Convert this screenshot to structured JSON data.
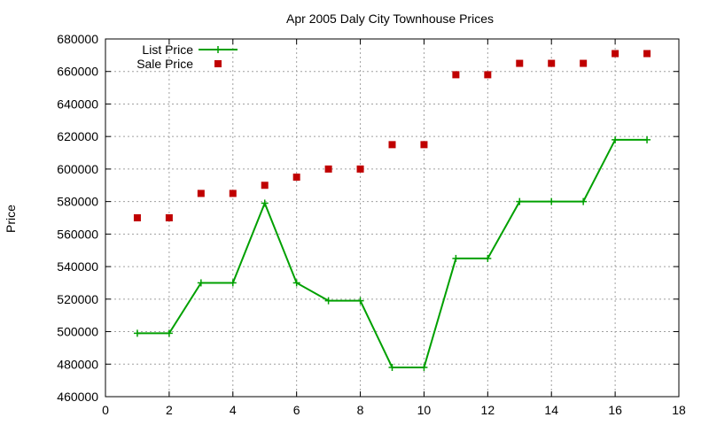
{
  "chart_data": {
    "type": "line",
    "title": "Apr 2005 Daly City Townhouse Prices",
    "xlabel": "",
    "ylabel": "Price",
    "xlim": [
      0,
      18
    ],
    "ylim": [
      460000,
      680000
    ],
    "x_ticks": [
      "0",
      "2",
      "4",
      "6",
      "8",
      "10",
      "12",
      "14",
      "16",
      "18"
    ],
    "y_ticks": [
      "460000",
      "480000",
      "500000",
      "520000",
      "540000",
      "560000",
      "580000",
      "600000",
      "620000",
      "640000",
      "660000",
      "680000"
    ],
    "grid": true,
    "legend_position": "top-left",
    "series": [
      {
        "name": "List Price",
        "style": "linespoints",
        "color": "#00a000",
        "x": [
          1,
          2,
          3,
          4,
          5,
          6,
          7,
          8,
          9,
          10,
          11,
          12,
          13,
          14,
          15,
          16,
          17
        ],
        "values": [
          499000,
          499000,
          530000,
          530000,
          579000,
          530000,
          519000,
          519000,
          478000,
          478000,
          545000,
          545000,
          580000,
          580000,
          580000,
          618000,
          618000
        ]
      },
      {
        "name": "Sale Price",
        "style": "points",
        "color": "#c00000",
        "x": [
          1,
          2,
          3,
          4,
          5,
          6,
          7,
          8,
          9,
          10,
          11,
          12,
          13,
          14,
          15,
          16,
          17
        ],
        "values": [
          570000,
          570000,
          585000,
          585000,
          590000,
          595000,
          600000,
          600000,
          615000,
          615000,
          658000,
          658000,
          665000,
          665000,
          665000,
          671000,
          671000
        ]
      }
    ]
  }
}
